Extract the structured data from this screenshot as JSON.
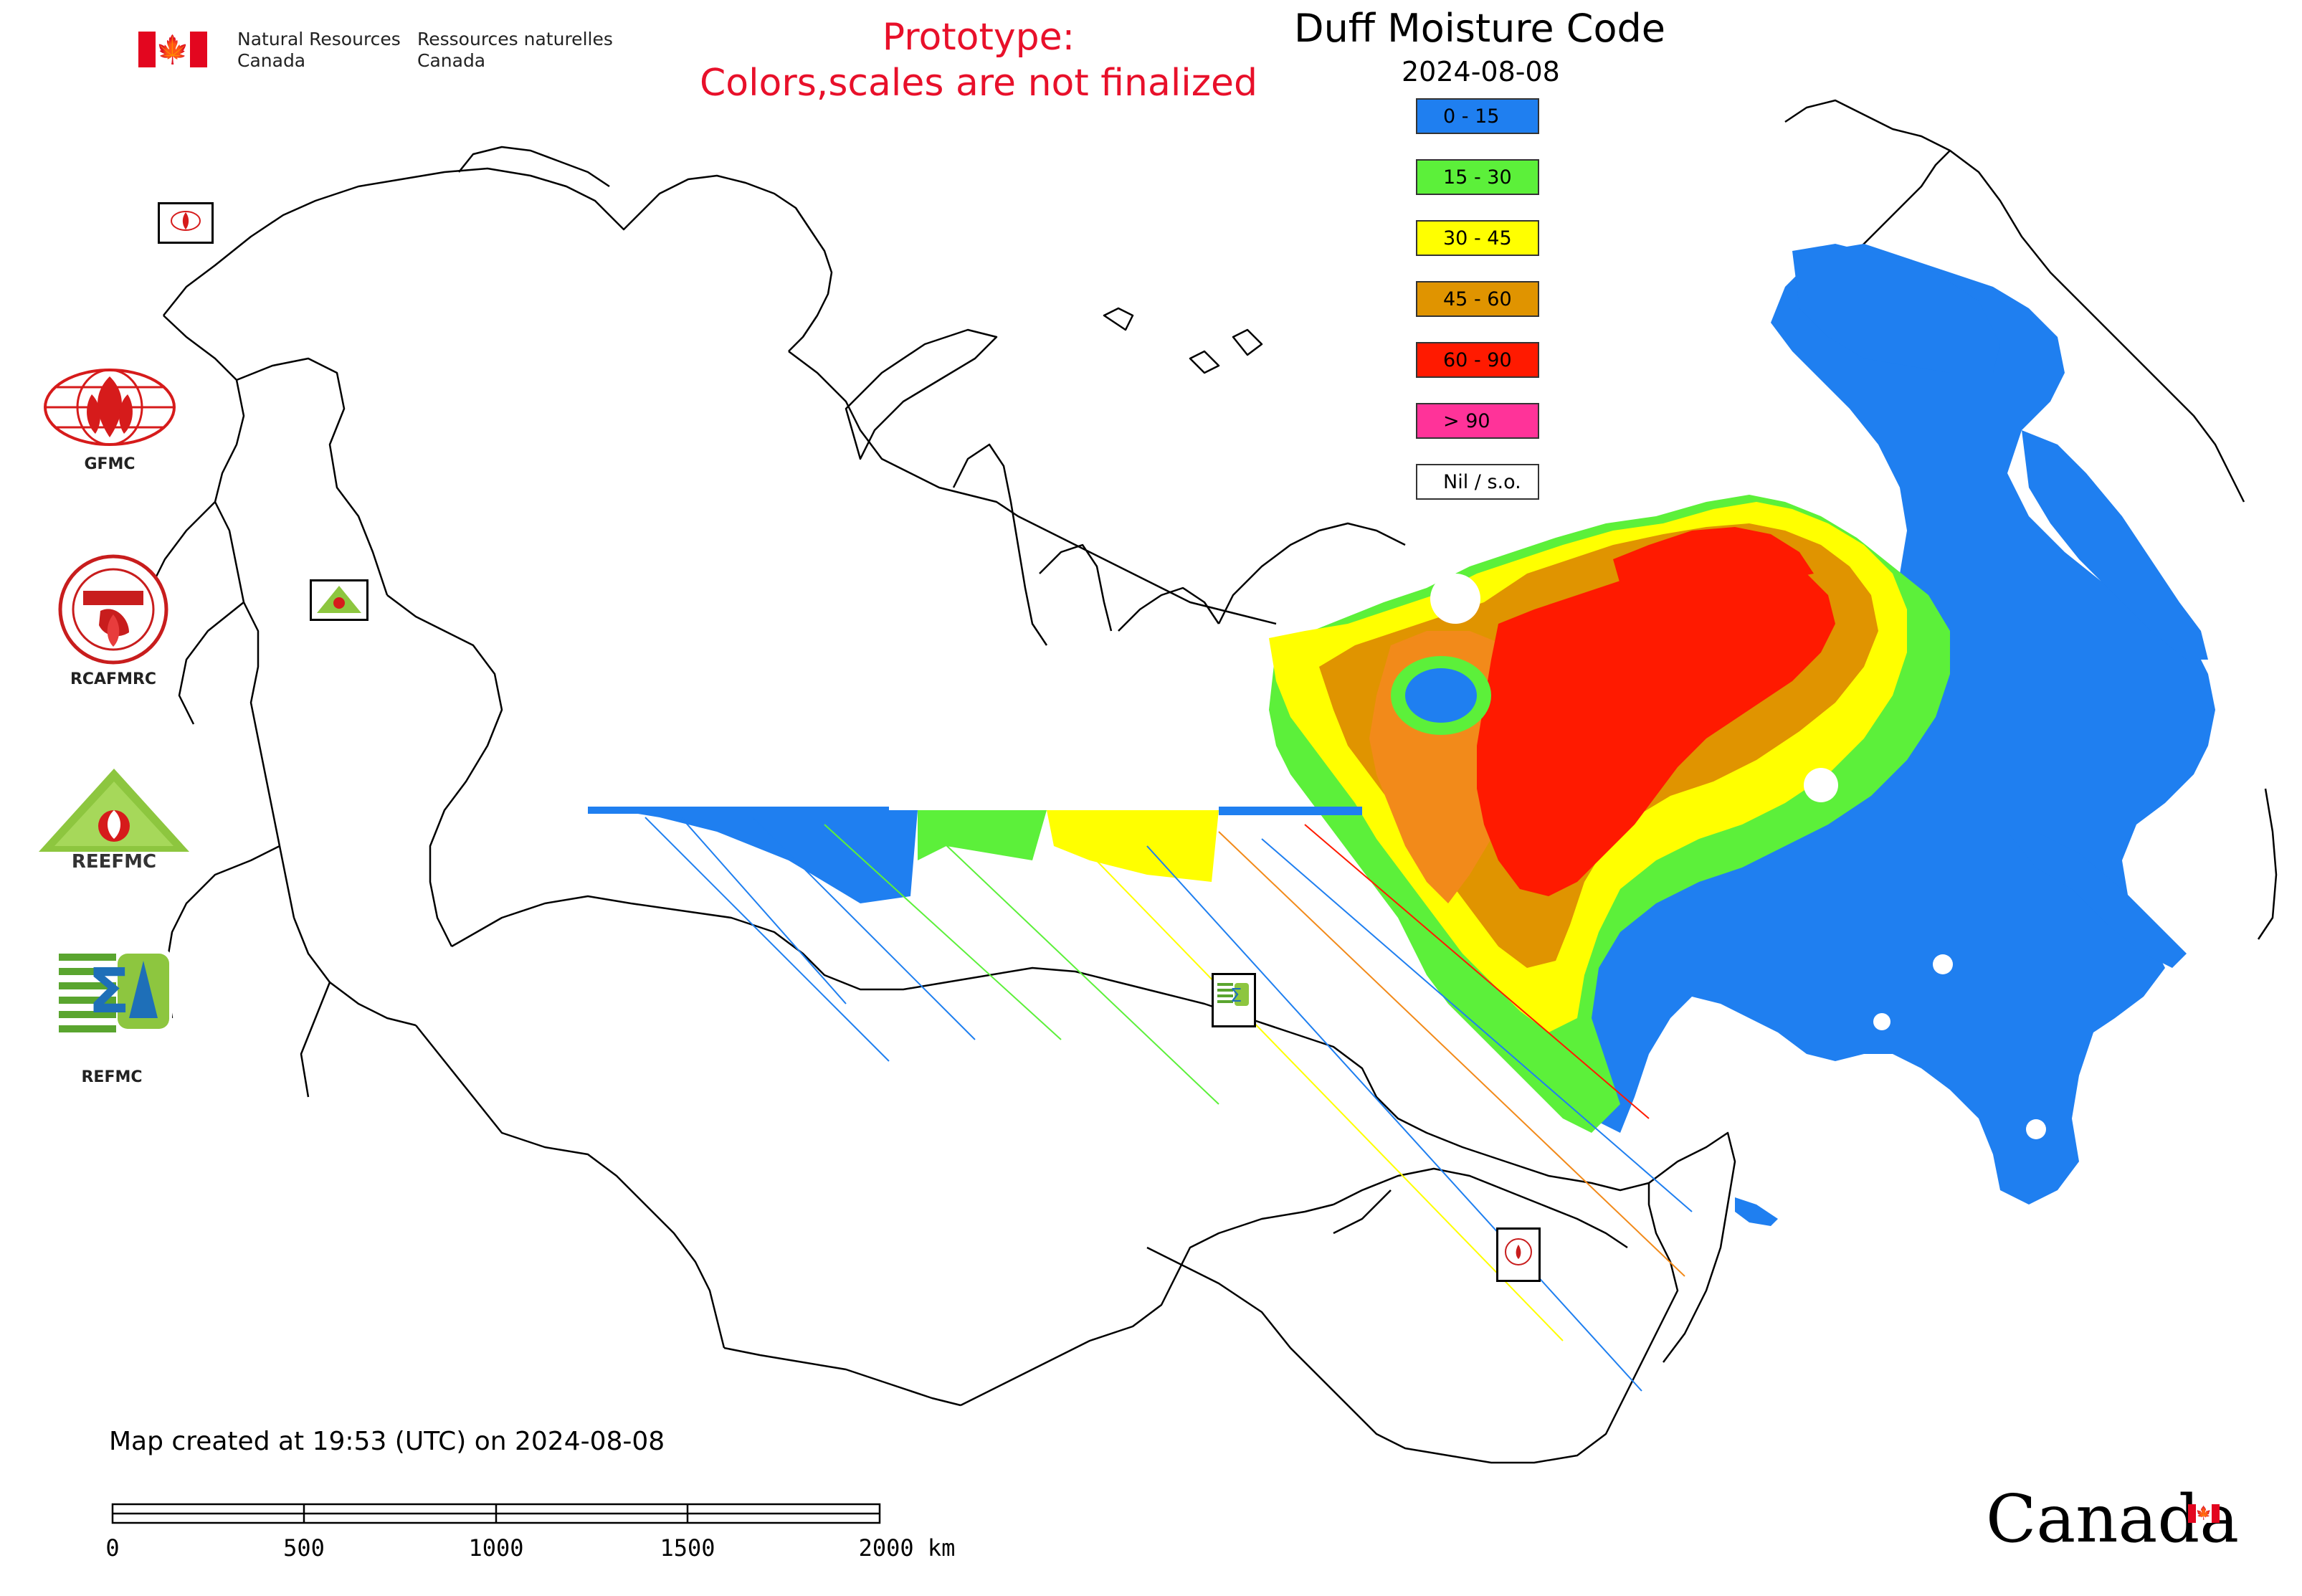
{
  "header": {
    "dept_en_line1": "Natural Resources",
    "dept_en_line2": "Canada",
    "dept_fr_line1": "Ressources naturelles",
    "dept_fr_line2": "Canada",
    "prototype_line1": "Prototype:",
    "prototype_line2": "Colors,scales are not finalized",
    "prototype_color": "#e8102a"
  },
  "map": {
    "title": "Duff Moisture Code",
    "date": "2024-08-08",
    "legend": [
      {
        "label": "0 - 15",
        "color": "#1f7ff0"
      },
      {
        "label": "15 - 30",
        "color": "#5cf03a"
      },
      {
        "label": "30 - 45",
        "color": "#ffff00"
      },
      {
        "label": "45 - 60",
        "color": "#e09400"
      },
      {
        "label": "60 - 90",
        "color": "#ff1a00"
      },
      {
        "label": "> 90",
        "color": "#ff3399"
      },
      {
        "label": "Nil / s.o.",
        "color": "#ffffff"
      }
    ]
  },
  "logos": [
    {
      "caption": "GFMC",
      "icon": "gfmc-globe-flame-icon"
    },
    {
      "caption": "RCAFMRC",
      "icon": "rcafmrc-round-seal-icon"
    },
    {
      "caption": "",
      "icon": "reefmc-triangle-icon"
    },
    {
      "caption": "REFMC",
      "icon": "refmc-sigma-icon"
    }
  ],
  "footer": {
    "created": "Map created at 19:53 (UTC) on 2024-08-08",
    "scale_ticks": [
      "0",
      "500",
      "1000",
      "1500",
      "2000 km"
    ],
    "wordmark": "Canada"
  }
}
